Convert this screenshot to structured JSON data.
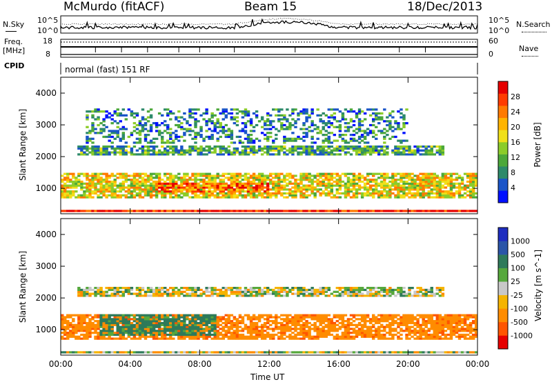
{
  "header": {
    "station": "McMurdo (fitACF)",
    "beam": "Beam 15",
    "date": "18/Dec/2013"
  },
  "noise_panel": {
    "left_label": "N.Sky",
    "right_label": "N.Search",
    "left_ticks": [
      "10^5",
      "10^0"
    ],
    "right_ticks": [
      "10^5",
      "10^0"
    ]
  },
  "freq_panel": {
    "left_label_1": "Freq.",
    "left_label_2": "[MHz]",
    "right_label": "Nave",
    "left_ticks": [
      "18",
      "8"
    ],
    "right_ticks": [
      "60",
      "0"
    ]
  },
  "cpid_panel": {
    "label": "CPID",
    "text": "normal (fast) 151 RF"
  },
  "colors": {
    "power_scale": [
      "#0010ff",
      "#1a55c8",
      "#2d8a6a",
      "#4ca83a",
      "#8ccc2a",
      "#f0e01a",
      "#ffb400",
      "#ff7a00",
      "#ff3c00",
      "#e60000"
    ],
    "velocity_scale": [
      "#1e2dbf",
      "#2a55a8",
      "#2e7a5a",
      "#56a83c",
      "#c8c8c8",
      "#f5b400",
      "#ff8c00",
      "#ff5500",
      "#e60000"
    ]
  },
  "chart_data": [
    {
      "type": "heatmap",
      "ylabel": "Slant Range [km]",
      "yticks": [
        "1000",
        "2000",
        "3000",
        "4000"
      ],
      "ylim": [
        200,
        4500
      ],
      "colorbar_label": "Power [dB]",
      "colorbar_ticks": [
        "4",
        "8",
        "12",
        "16",
        "20",
        "24",
        "28"
      ],
      "colorbar_range": [
        0,
        32
      ],
      "xlim_hours": [
        0,
        24
      ],
      "xticks": [
        "00:00",
        "04:00",
        "08:00",
        "12:00",
        "16:00",
        "20:00",
        "00:00"
      ],
      "bands": [
        {
          "range_km": [
            250,
            300
          ],
          "level_db": 30,
          "hours": [
            0,
            24
          ]
        },
        {
          "range_km": [
            700,
            1500
          ],
          "level_db": 18,
          "hours": [
            0,
            24
          ]
        },
        {
          "range_km": [
            850,
            1200
          ],
          "level_db": 26,
          "hours": [
            5.5,
            12
          ]
        },
        {
          "range_km": [
            2050,
            2350
          ],
          "level_db": 10,
          "hours": [
            1,
            22
          ]
        },
        {
          "range_km": [
            2400,
            3500
          ],
          "level_db": 8,
          "hours": [
            1.5,
            20
          ]
        }
      ]
    },
    {
      "type": "heatmap",
      "ylabel": "Slant Range [km]",
      "yticks": [
        "1000",
        "2000",
        "3000",
        "4000"
      ],
      "ylim": [
        200,
        4500
      ],
      "colorbar_label": "Velocity [m s^-1]",
      "colorbar_ticks": [
        "1000",
        "500",
        "100",
        "25",
        "-25",
        "-100",
        "-500",
        "-1000"
      ],
      "xlim_hours": [
        0,
        24
      ],
      "xticks": [
        "00:00",
        "04:00",
        "08:00",
        "12:00",
        "16:00",
        "20:00",
        "00:00"
      ],
      "xlabel": "Time UT",
      "bands": [
        {
          "range_km": [
            700,
            1500
          ],
          "velocity": -400,
          "hours": [
            0,
            24
          ]
        },
        {
          "range_km": [
            800,
            1500
          ],
          "velocity": 200,
          "hours": [
            2.3,
            9
          ]
        },
        {
          "range_km": [
            2050,
            2350
          ],
          "velocity": 0,
          "hours": [
            1,
            22
          ]
        },
        {
          "range_km": [
            250,
            300
          ],
          "velocity": 0,
          "hours": [
            0,
            24
          ]
        }
      ]
    }
  ]
}
